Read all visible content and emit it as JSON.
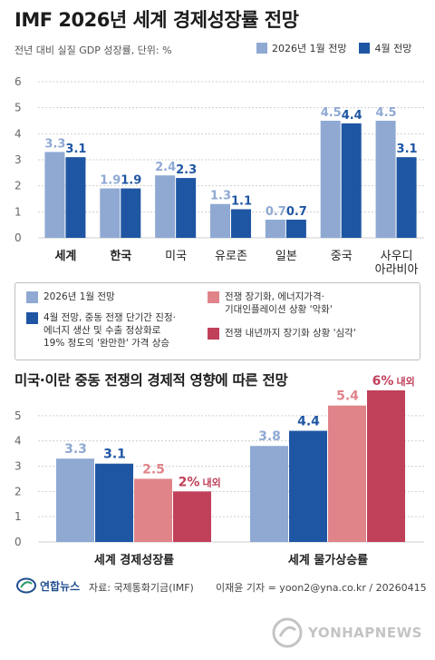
{
  "header": {
    "title": "IMF 2026년 세계 경제성장률 전망",
    "subtitle": "전년 대비 실질 GDP 성장률, 단위: %"
  },
  "colors": {
    "jan": "#8fa9d3",
    "apr": "#1f56a3",
    "light_red": "#e0848a",
    "dark_red": "#c0405a"
  },
  "chart_data": [
    {
      "type": "bar",
      "title": "IMF 2026년 세계 경제성장률 전망",
      "ylabel": "전년 대비 실질 GDP 성장률, 단위: %",
      "ylim": [
        0,
        6
      ],
      "yticks": [
        "0",
        "1",
        "2",
        "3",
        "4",
        "5",
        "6"
      ],
      "grid": true,
      "legend_position": "top-right",
      "categories": [
        "세계",
        "한국",
        "미국",
        "유로존",
        "일본",
        "중국",
        "사우디\n아라비아"
      ],
      "series": [
        {
          "name": "2026년 1월 전망",
          "values": [
            3.3,
            1.9,
            2.4,
            1.3,
            0.7,
            4.5,
            4.5
          ],
          "labels": [
            "3.3",
            "1.9",
            "2.4",
            "1.3",
            "0.7",
            "4.5",
            "4.5"
          ]
        },
        {
          "name": "4월 전망",
          "values": [
            3.1,
            1.9,
            2.3,
            1.1,
            0.7,
            4.4,
            3.1
          ],
          "labels": [
            "3.1",
            "1.9",
            "2.3",
            "1.1",
            "0.7",
            "4.4",
            "3.1"
          ]
        }
      ]
    },
    {
      "type": "bar",
      "title": "미국·이란 중동 전쟁의 경제적 영향에 따른 전망",
      "ylim": [
        0,
        6
      ],
      "yticks": [
        "0",
        "1",
        "2",
        "3",
        "4",
        "5"
      ],
      "grid": true,
      "categories": [
        "세계 경제성장률",
        "세계 물가상승률"
      ],
      "series": [
        {
          "name": "2026년 1월 전망",
          "values": [
            3.3,
            3.8
          ],
          "labels": [
            "3.3",
            "3.8"
          ]
        },
        {
          "name": "4월 전망, 중동 전쟁 단기간 진정·\n에너지 생산 및 수출 정상화로\n19% 정도의 '완만한' 가격 상승",
          "values": [
            3.1,
            4.4
          ],
          "labels": [
            "3.1",
            "4.4"
          ]
        },
        {
          "name": "전쟁 장기화, 에너지가격·\n기대인플레이션 상황 '악화'",
          "values": [
            2.5,
            5.4
          ],
          "labels": [
            "2.5",
            "5.4"
          ]
        },
        {
          "name": "전쟁 내년까지 장기화 상황 '심각'",
          "values": [
            2.0,
            6.0
          ],
          "labels": [
            "2%",
            "6%"
          ],
          "label_suffix": "내외"
        }
      ]
    }
  ],
  "legend_top": {
    "jan": "2026년 1월 전망",
    "apr": "4월 전망"
  },
  "footer": {
    "logo": "연합뉴스",
    "source": "자료: 국제통화기금(IMF)",
    "credit": "이재윤 기자 = yoon2@yna.co.kr / 20260415",
    "watermark": "YONHAPNEWS"
  }
}
